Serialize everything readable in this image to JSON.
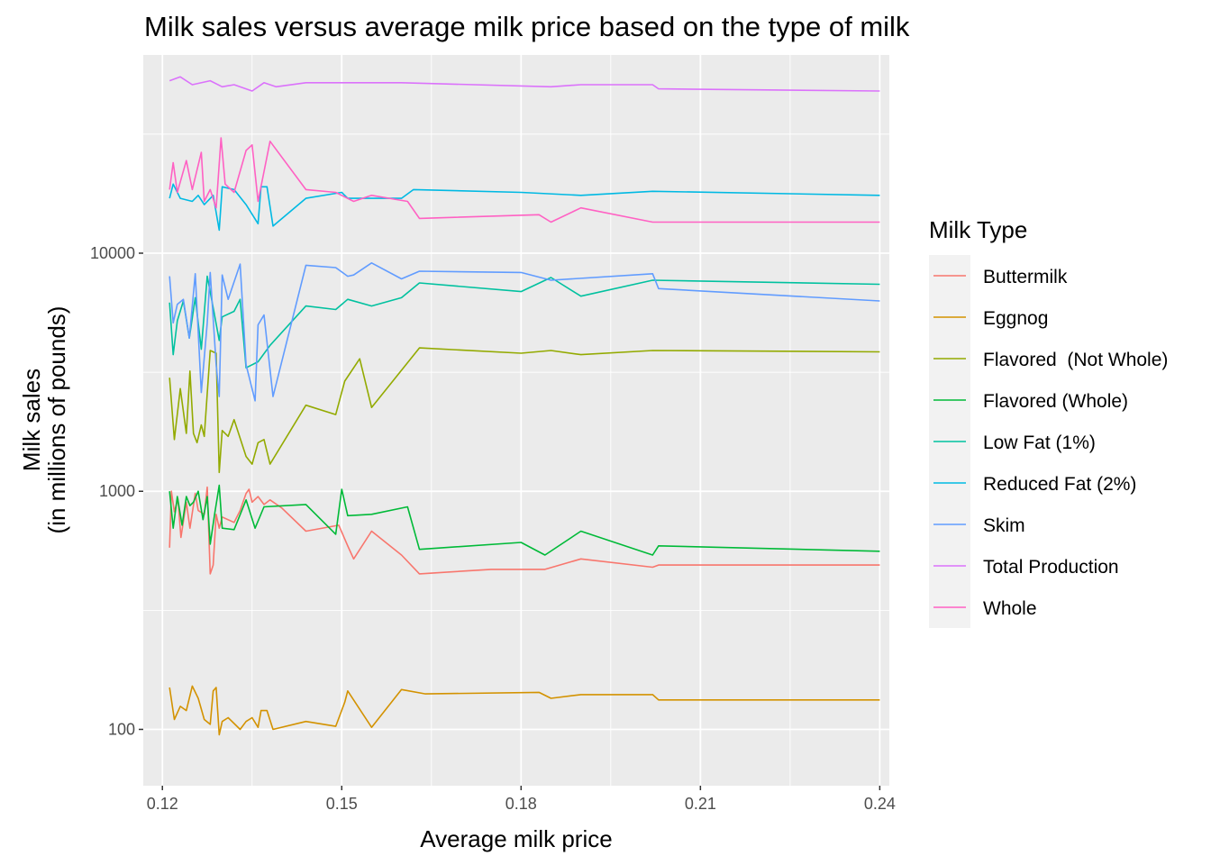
{
  "chart_data": {
    "type": "line",
    "title": "Milk sales versus average milk price based on the type of milk",
    "xlabel": "Average milk price",
    "ylabel_lines": [
      "Milk sales",
      "(in millions of pounds)"
    ],
    "xlim": [
      0.1168,
      0.2416
    ],
    "ylim": [
      58,
      68000
    ],
    "y_scale": "log10",
    "x_ticks": [
      0.12,
      0.15,
      0.18,
      0.21,
      0.24
    ],
    "x_tick_labels": [
      "0.12",
      "0.15",
      "0.18",
      "0.21",
      "0.24"
    ],
    "y_ticks": [
      100,
      1000,
      10000
    ],
    "y_tick_labels": [
      "100",
      "1000",
      "10000"
    ],
    "y_minor_ticks": [
      316,
      3162,
      31623
    ],
    "x_minor_ticks": [
      0.135,
      0.165,
      0.195,
      0.225
    ],
    "grid": true,
    "legend": {
      "title": "Milk Type",
      "position": "right"
    },
    "series": [
      {
        "name": "Buttermilk",
        "color": "#F8766D",
        "points": [
          [
            0.1212,
            580
          ],
          [
            0.1215,
            1000
          ],
          [
            0.122,
            820
          ],
          [
            0.1226,
            930
          ],
          [
            0.1231,
            640
          ],
          [
            0.124,
            900
          ],
          [
            0.1246,
            700
          ],
          [
            0.1255,
            980
          ],
          [
            0.126,
            830
          ],
          [
            0.127,
            800
          ],
          [
            0.1275,
            1040
          ],
          [
            0.128,
            450
          ],
          [
            0.1285,
            490
          ],
          [
            0.129,
            800
          ],
          [
            0.1295,
            700
          ],
          [
            0.13,
            780
          ],
          [
            0.132,
            740
          ],
          [
            0.133,
            830
          ],
          [
            0.134,
            980
          ],
          [
            0.1345,
            1020
          ],
          [
            0.135,
            900
          ],
          [
            0.136,
            950
          ],
          [
            0.137,
            880
          ],
          [
            0.138,
            920
          ],
          [
            0.14,
            850
          ],
          [
            0.144,
            680
          ],
          [
            0.1495,
            720
          ],
          [
            0.151,
            590
          ],
          [
            0.152,
            520
          ],
          [
            0.155,
            680
          ],
          [
            0.16,
            540
          ],
          [
            0.163,
            450
          ],
          [
            0.175,
            470
          ],
          [
            0.184,
            470
          ],
          [
            0.19,
            520
          ],
          [
            0.202,
            480
          ],
          [
            0.203,
            490
          ],
          [
            0.24,
            490
          ]
        ]
      },
      {
        "name": "Eggnog",
        "color": "#D39200",
        "points": [
          [
            0.1212,
            150
          ],
          [
            0.122,
            110
          ],
          [
            0.123,
            125
          ],
          [
            0.124,
            120
          ],
          [
            0.125,
            152
          ],
          [
            0.126,
            135
          ],
          [
            0.127,
            110
          ],
          [
            0.128,
            105
          ],
          [
            0.1285,
            145
          ],
          [
            0.129,
            150
          ],
          [
            0.1295,
            95
          ],
          [
            0.13,
            108
          ],
          [
            0.131,
            112
          ],
          [
            0.133,
            100
          ],
          [
            0.134,
            108
          ],
          [
            0.135,
            112
          ],
          [
            0.136,
            102
          ],
          [
            0.1365,
            120
          ],
          [
            0.1375,
            120
          ],
          [
            0.1385,
            100
          ],
          [
            0.144,
            108
          ],
          [
            0.149,
            103
          ],
          [
            0.1505,
            130
          ],
          [
            0.151,
            145
          ],
          [
            0.155,
            102
          ],
          [
            0.16,
            147
          ],
          [
            0.164,
            141
          ],
          [
            0.183,
            143
          ],
          [
            0.185,
            135
          ],
          [
            0.19,
            140
          ],
          [
            0.202,
            140
          ],
          [
            0.203,
            133
          ],
          [
            0.24,
            133
          ]
        ]
      },
      {
        "name": "Flavored  (Not Whole)",
        "color": "#93AA00",
        "points": [
          [
            0.1212,
            3000
          ],
          [
            0.122,
            1650
          ],
          [
            0.123,
            2700
          ],
          [
            0.124,
            1750
          ],
          [
            0.1246,
            3200
          ],
          [
            0.1252,
            1750
          ],
          [
            0.1258,
            1600
          ],
          [
            0.1265,
            1900
          ],
          [
            0.127,
            1700
          ],
          [
            0.128,
            3900
          ],
          [
            0.129,
            3800
          ],
          [
            0.1295,
            1200
          ],
          [
            0.13,
            1800
          ],
          [
            0.131,
            1700
          ],
          [
            0.132,
            2000
          ],
          [
            0.134,
            1400
          ],
          [
            0.135,
            1300
          ],
          [
            0.136,
            1600
          ],
          [
            0.137,
            1650
          ],
          [
            0.138,
            1300
          ],
          [
            0.144,
            2300
          ],
          [
            0.149,
            2100
          ],
          [
            0.1505,
            2900
          ],
          [
            0.153,
            3600
          ],
          [
            0.155,
            2250
          ],
          [
            0.163,
            4000
          ],
          [
            0.18,
            3800
          ],
          [
            0.185,
            3900
          ],
          [
            0.19,
            3750
          ],
          [
            0.202,
            3900
          ],
          [
            0.24,
            3850
          ]
        ]
      },
      {
        "name": "Flavored (Whole)",
        "color": "#00BA38",
        "points": [
          [
            0.1212,
            1000
          ],
          [
            0.1218,
            700
          ],
          [
            0.1225,
            950
          ],
          [
            0.1233,
            720
          ],
          [
            0.124,
            950
          ],
          [
            0.1246,
            870
          ],
          [
            0.1252,
            900
          ],
          [
            0.126,
            1000
          ],
          [
            0.1268,
            760
          ],
          [
            0.1275,
            950
          ],
          [
            0.128,
            600
          ],
          [
            0.1288,
            820
          ],
          [
            0.1295,
            1060
          ],
          [
            0.13,
            700
          ],
          [
            0.132,
            690
          ],
          [
            0.134,
            920
          ],
          [
            0.1355,
            700
          ],
          [
            0.137,
            860
          ],
          [
            0.144,
            880
          ],
          [
            0.149,
            660
          ],
          [
            0.15,
            1020
          ],
          [
            0.151,
            790
          ],
          [
            0.155,
            800
          ],
          [
            0.161,
            860
          ],
          [
            0.163,
            570
          ],
          [
            0.18,
            610
          ],
          [
            0.184,
            540
          ],
          [
            0.19,
            680
          ],
          [
            0.202,
            540
          ],
          [
            0.203,
            590
          ],
          [
            0.24,
            560
          ]
        ]
      },
      {
        "name": "Low Fat (1%)",
        "color": "#00C19F",
        "points": [
          [
            0.1212,
            6200
          ],
          [
            0.1218,
            3750
          ],
          [
            0.1225,
            5200
          ],
          [
            0.1235,
            6300
          ],
          [
            0.1245,
            4400
          ],
          [
            0.1255,
            6500
          ],
          [
            0.1265,
            3950
          ],
          [
            0.1275,
            8000
          ],
          [
            0.1285,
            5900
          ],
          [
            0.1295,
            4300
          ],
          [
            0.13,
            5400
          ],
          [
            0.132,
            5700
          ],
          [
            0.133,
            6400
          ],
          [
            0.134,
            3300
          ],
          [
            0.136,
            3500
          ],
          [
            0.138,
            4100
          ],
          [
            0.144,
            6000
          ],
          [
            0.149,
            5800
          ],
          [
            0.151,
            6400
          ],
          [
            0.155,
            6000
          ],
          [
            0.16,
            6500
          ],
          [
            0.163,
            7500
          ],
          [
            0.18,
            6900
          ],
          [
            0.185,
            7900
          ],
          [
            0.19,
            6600
          ],
          [
            0.202,
            7700
          ],
          [
            0.24,
            7400
          ]
        ]
      },
      {
        "name": "Reduced Fat (2%)",
        "color": "#00B9E3",
        "points": [
          [
            0.1212,
            17000
          ],
          [
            0.1218,
            19500
          ],
          [
            0.123,
            17000
          ],
          [
            0.125,
            16500
          ],
          [
            0.126,
            17500
          ],
          [
            0.127,
            16000
          ],
          [
            0.1285,
            17500
          ],
          [
            0.1295,
            12500
          ],
          [
            0.13,
            19000
          ],
          [
            0.132,
            18500
          ],
          [
            0.134,
            16000
          ],
          [
            0.136,
            13300
          ],
          [
            0.1365,
            19000
          ],
          [
            0.1375,
            19000
          ],
          [
            0.1385,
            13000
          ],
          [
            0.144,
            17000
          ],
          [
            0.15,
            18000
          ],
          [
            0.151,
            17000
          ],
          [
            0.16,
            17000
          ],
          [
            0.162,
            18500
          ],
          [
            0.18,
            18000
          ],
          [
            0.19,
            17500
          ],
          [
            0.202,
            18200
          ],
          [
            0.24,
            17500
          ]
        ]
      },
      {
        "name": "Skim",
        "color": "#619CFF",
        "points": [
          [
            0.1212,
            8000
          ],
          [
            0.1218,
            5100
          ],
          [
            0.1225,
            6100
          ],
          [
            0.1235,
            6400
          ],
          [
            0.1245,
            4400
          ],
          [
            0.1255,
            8200
          ],
          [
            0.1265,
            2600
          ],
          [
            0.1275,
            5100
          ],
          [
            0.128,
            8300
          ],
          [
            0.129,
            3400
          ],
          [
            0.1295,
            2500
          ],
          [
            0.13,
            8100
          ],
          [
            0.131,
            6400
          ],
          [
            0.133,
            9000
          ],
          [
            0.134,
            3400
          ],
          [
            0.1355,
            2400
          ],
          [
            0.136,
            5000
          ],
          [
            0.137,
            5500
          ],
          [
            0.1385,
            2500
          ],
          [
            0.144,
            8900
          ],
          [
            0.149,
            8700
          ],
          [
            0.151,
            8000
          ],
          [
            0.152,
            8100
          ],
          [
            0.155,
            9100
          ],
          [
            0.16,
            7800
          ],
          [
            0.163,
            8400
          ],
          [
            0.18,
            8300
          ],
          [
            0.185,
            7700
          ],
          [
            0.202,
            8200
          ],
          [
            0.203,
            7100
          ],
          [
            0.24,
            6300
          ]
        ]
      },
      {
        "name": "Total Production",
        "color": "#DB72FB",
        "points": [
          [
            0.1212,
            53000
          ],
          [
            0.123,
            55000
          ],
          [
            0.125,
            51000
          ],
          [
            0.128,
            53000
          ],
          [
            0.13,
            50000
          ],
          [
            0.132,
            51000
          ],
          [
            0.135,
            48000
          ],
          [
            0.137,
            52000
          ],
          [
            0.139,
            50000
          ],
          [
            0.144,
            52000
          ],
          [
            0.16,
            52000
          ],
          [
            0.185,
            50000
          ],
          [
            0.19,
            51000
          ],
          [
            0.202,
            51000
          ],
          [
            0.203,
            49000
          ],
          [
            0.24,
            48000
          ]
        ]
      },
      {
        "name": "Whole",
        "color": "#FF61C3",
        "points": [
          [
            0.1212,
            18500
          ],
          [
            0.1218,
            24000
          ],
          [
            0.1225,
            18000
          ],
          [
            0.124,
            24500
          ],
          [
            0.125,
            18500
          ],
          [
            0.1265,
            26500
          ],
          [
            0.127,
            16500
          ],
          [
            0.128,
            18500
          ],
          [
            0.129,
            15500
          ],
          [
            0.1298,
            30500
          ],
          [
            0.1305,
            19500
          ],
          [
            0.132,
            18000
          ],
          [
            0.134,
            27000
          ],
          [
            0.135,
            28500
          ],
          [
            0.136,
            16500
          ],
          [
            0.138,
            29500
          ],
          [
            0.144,
            18500
          ],
          [
            0.149,
            18000
          ],
          [
            0.152,
            16500
          ],
          [
            0.155,
            17500
          ],
          [
            0.161,
            16500
          ],
          [
            0.163,
            14000
          ],
          [
            0.183,
            14500
          ],
          [
            0.185,
            13500
          ],
          [
            0.19,
            15500
          ],
          [
            0.202,
            13500
          ],
          [
            0.24,
            13500
          ]
        ]
      }
    ]
  }
}
